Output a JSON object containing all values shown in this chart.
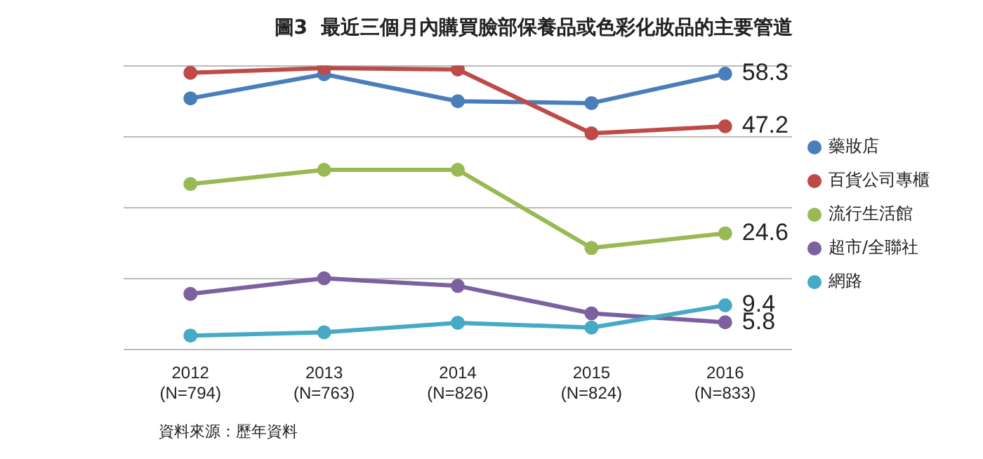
{
  "chart_data": {
    "type": "line",
    "title": "圖3  最近三個月內購買臉部保養品或色彩化妝品的主要管道",
    "categories": [
      "2012\n(N=794)",
      "2013\n(N=763)",
      "2014\n(N=826)",
      "2015\n(N=824)",
      "2016\n(N=833)"
    ],
    "series": [
      {
        "name": "藥妝店",
        "color": "#4a7ebb",
        "values": [
          53.1,
          58.2,
          52.5,
          52.1,
          58.3
        ],
        "value_labels": [
          null,
          null,
          null,
          null,
          "58.3"
        ]
      },
      {
        "name": "百貨公司專櫃",
        "color": "#be4b48",
        "values": [
          58.5,
          59.5,
          59.2,
          45.7,
          47.2
        ],
        "value_labels": [
          null,
          null,
          null,
          null,
          "47.2"
        ]
      },
      {
        "name": "流行生活館",
        "color": "#98b954",
        "values": [
          35.0,
          38.0,
          38.0,
          21.5,
          24.6
        ],
        "value_labels": [
          null,
          null,
          null,
          null,
          "24.6"
        ]
      },
      {
        "name": "超市/全聯社",
        "color": "#7d60a0",
        "values": [
          11.8,
          15.1,
          13.5,
          7.7,
          5.8
        ],
        "value_labels": [
          null,
          null,
          null,
          null,
          "5.8"
        ]
      },
      {
        "name": "網路",
        "color": "#46aac5",
        "values": [
          3.0,
          3.7,
          5.7,
          4.7,
          9.4
        ],
        "value_labels": [
          null,
          null,
          null,
          null,
          "9.4"
        ]
      }
    ],
    "ylim": [
      0,
      60
    ],
    "yticks": [
      {
        "value": 0,
        "label": null
      },
      {
        "value": 15,
        "label": null
      },
      {
        "value": 30,
        "label": null
      },
      {
        "value": 45,
        "label": null
      },
      {
        "value": 60,
        "label": null
      }
    ],
    "tick_labels": "x",
    "grid": "y",
    "legend": "right",
    "marker": "circle",
    "line_style": "solid",
    "annotations": [
      "資料來源：歷年資料"
    ]
  }
}
